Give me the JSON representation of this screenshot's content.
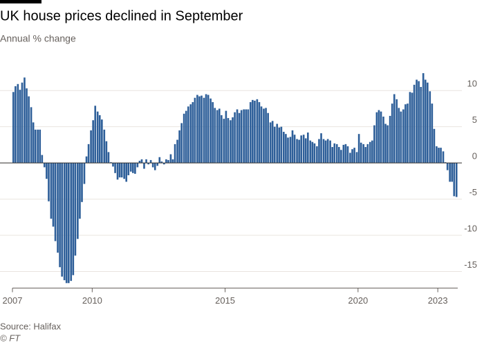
{
  "chart_data": {
    "type": "bar",
    "title": "UK house prices declined in September",
    "subtitle": "Annual % change",
    "source": "Source: Halifax",
    "credit": "© FT",
    "color": "#2e5f99",
    "grid": true,
    "xlim": [
      2007,
      2023.75
    ],
    "xticks": [
      2007,
      2010,
      2015,
      2020,
      2023
    ],
    "ylim": [
      -17,
      12.5
    ],
    "yticks": [
      10,
      5,
      0,
      -5,
      -10,
      -15
    ],
    "x": [
      2007,
      2007.08,
      2007.17,
      2007.25,
      2007.33,
      2007.42,
      2007.5,
      2007.58,
      2007.67,
      2007.75,
      2007.83,
      2007.92,
      2008,
      2008.08,
      2008.17,
      2008.25,
      2008.33,
      2008.42,
      2008.5,
      2008.58,
      2008.67,
      2008.75,
      2008.83,
      2008.92,
      2009,
      2009.08,
      2009.17,
      2009.25,
      2009.33,
      2009.42,
      2009.5,
      2009.58,
      2009.67,
      2009.75,
      2009.83,
      2009.92,
      2010,
      2010.08,
      2010.17,
      2010.25,
      2010.33,
      2010.42,
      2010.5,
      2010.58,
      2010.67,
      2010.75,
      2010.83,
      2010.92,
      2011,
      2011.08,
      2011.17,
      2011.25,
      2011.33,
      2011.42,
      2011.5,
      2011.58,
      2011.67,
      2011.75,
      2011.83,
      2011.92,
      2012,
      2012.08,
      2012.17,
      2012.25,
      2012.33,
      2012.42,
      2012.5,
      2012.58,
      2012.67,
      2012.75,
      2012.83,
      2012.92,
      2013,
      2013.08,
      2013.17,
      2013.25,
      2013.33,
      2013.42,
      2013.5,
      2013.58,
      2013.67,
      2013.75,
      2013.83,
      2013.92,
      2014,
      2014.08,
      2014.17,
      2014.25,
      2014.33,
      2014.42,
      2014.5,
      2014.58,
      2014.67,
      2014.75,
      2014.83,
      2014.92,
      2015,
      2015.08,
      2015.17,
      2015.25,
      2015.33,
      2015.42,
      2015.5,
      2015.58,
      2015.67,
      2015.75,
      2015.83,
      2015.92,
      2016,
      2016.08,
      2016.17,
      2016.25,
      2016.33,
      2016.42,
      2016.5,
      2016.58,
      2016.67,
      2016.75,
      2016.83,
      2016.92,
      2017,
      2017.08,
      2017.17,
      2017.25,
      2017.33,
      2017.42,
      2017.5,
      2017.58,
      2017.67,
      2017.75,
      2017.83,
      2017.92,
      2018,
      2018.08,
      2018.17,
      2018.25,
      2018.33,
      2018.42,
      2018.5,
      2018.58,
      2018.67,
      2018.75,
      2018.83,
      2018.92,
      2019,
      2019.08,
      2019.17,
      2019.25,
      2019.33,
      2019.42,
      2019.5,
      2019.58,
      2019.67,
      2019.75,
      2019.83,
      2019.92,
      2020,
      2020.08,
      2020.17,
      2020.25,
      2020.33,
      2020.42,
      2020.5,
      2020.58,
      2020.67,
      2020.75,
      2020.83,
      2020.92,
      2021,
      2021.08,
      2021.17,
      2021.25,
      2021.33,
      2021.42,
      2021.5,
      2021.58,
      2021.67,
      2021.75,
      2021.83,
      2021.92,
      2022,
      2022.08,
      2022.17,
      2022.25,
      2022.33,
      2022.42,
      2022.5,
      2022.58,
      2022.67,
      2022.75,
      2022.83,
      2022.92,
      2023,
      2023.08,
      2023.17,
      2023.25,
      2023.33,
      2023.42,
      2023.5,
      2023.58,
      2023.67
    ],
    "values": [
      9.8,
      10.6,
      10.9,
      10.1,
      11.1,
      11.8,
      10.3,
      9.2,
      7.7,
      5.6,
      4.6,
      4.6,
      4.6,
      1.1,
      -0.6,
      -2.2,
      -5.3,
      -7.7,
      -8.8,
      -10.8,
      -12.4,
      -14.4,
      -15.7,
      -16.2,
      -16.6,
      -16.6,
      -16.3,
      -15.5,
      -12.8,
      -10.5,
      -7.7,
      -5.4,
      -2.9,
      0.9,
      2.6,
      4.5,
      5.9,
      7.9,
      7.1,
      6.6,
      6.0,
      4.6,
      3.0,
      1.5,
      0.1,
      -0.5,
      -1.4,
      -2.3,
      -2.0,
      -2.0,
      -2.2,
      -2.6,
      -1.7,
      -1.2,
      -1.4,
      -1.5,
      -0.6,
      0.3,
      0.5,
      -0.8,
      0.5,
      -0.2,
      0.4,
      -0.6,
      -1.0,
      -0.4,
      0.8,
      0.2,
      -0.2,
      0.5,
      0.4,
      1.2,
      0.5,
      2.6,
      3.2,
      4.5,
      5.5,
      6.8,
      7.2,
      7.8,
      8.1,
      8.4,
      9.0,
      9.4,
      9.2,
      9.3,
      9.0,
      9.5,
      9.4,
      8.9,
      8.4,
      7.6,
      7.3,
      7.5,
      6.6,
      6.1,
      7.2,
      6.2,
      5.9,
      6.3,
      7.0,
      7.4,
      6.9,
      7.3,
      7.4,
      7.4,
      7.4,
      8.4,
      8.7,
      8.6,
      8.8,
      8.4,
      7.8,
      7.5,
      7.6,
      6.9,
      5.6,
      5.8,
      5.0,
      5.4,
      4.9,
      5.0,
      4.3,
      4.0,
      3.5,
      3.6,
      4.5,
      3.9,
      3.3,
      3.2,
      3.8,
      3.9,
      3.4,
      4.2,
      3.1,
      2.9,
      2.7,
      2.3,
      3.3,
      4.1,
      3.3,
      3.1,
      3.3,
      3.1,
      2.2,
      2.7,
      2.6,
      2.2,
      1.8,
      2.5,
      2.6,
      2.3,
      1.4,
      1.9,
      2.1,
      1.5,
      4.0,
      2.8,
      2.6,
      2.2,
      2.6,
      2.9,
      3.1,
      5.2,
      7.0,
      7.3,
      7.1,
      6.4,
      5.4,
      5.2,
      6.5,
      8.2,
      9.5,
      8.8,
      7.6,
      7.1,
      7.4,
      8.1,
      8.2,
      9.8,
      9.7,
      10.8,
      11.5,
      11.3,
      10.5,
      12.4,
      11.5,
      11.1,
      9.9,
      8.2,
      4.7,
      2.3,
      2.1,
      2.1,
      1.6,
      0.1,
      -1.0,
      -2.6,
      -2.6,
      -4.6,
      -4.7
    ]
  }
}
